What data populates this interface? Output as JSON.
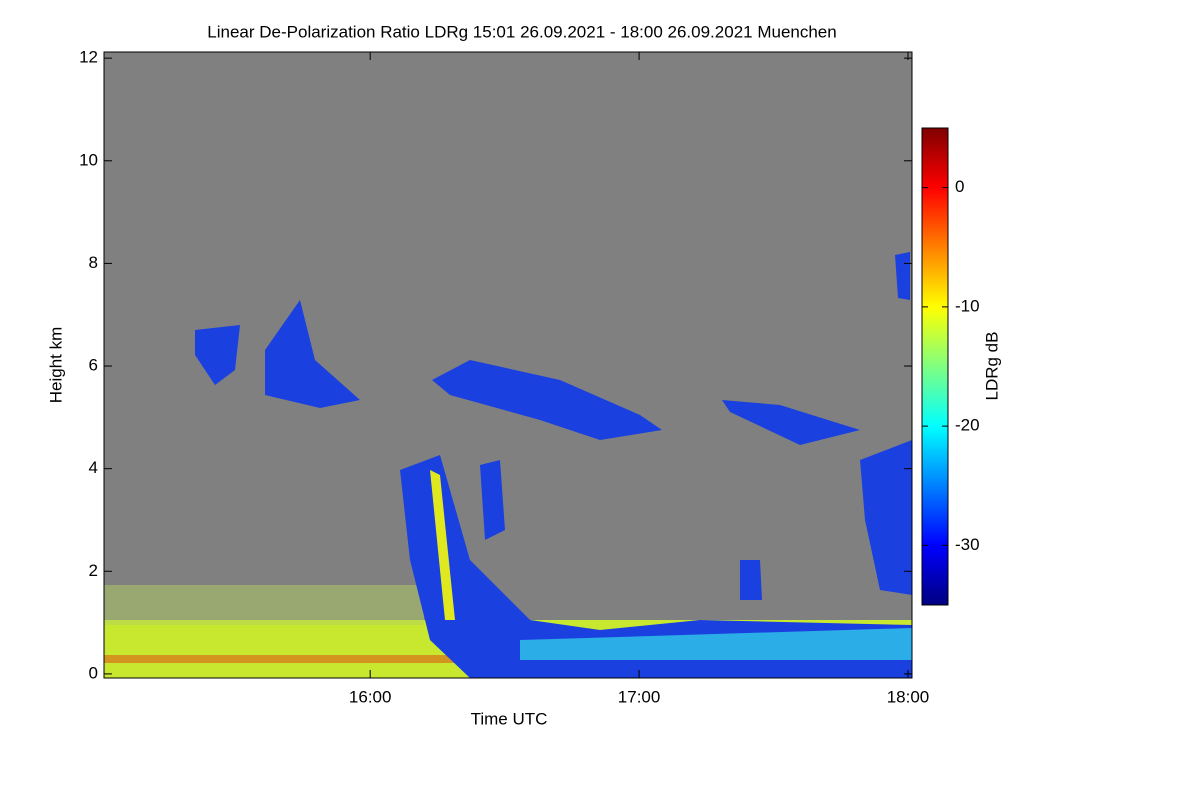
{
  "chart_data": {
    "type": "heatmap",
    "title": "Linear De-Polarization Ratio LDRg   15:01 26.09.2021 - 18:00 26.09.2021 Muenchen",
    "xlabel": "Time UTC",
    "ylabel": "Height km",
    "xlim": [
      15.01,
      18.015
    ],
    "xticks": [
      {
        "value": 16,
        "label": "16:00"
      },
      {
        "value": 17,
        "label": "17:00"
      },
      {
        "value": 18,
        "label": "18:00"
      }
    ],
    "ylim": [
      -0.08,
      12.12
    ],
    "yticks": [
      0,
      2,
      4,
      6,
      8,
      10,
      12
    ],
    "colorbar": {
      "label": "LDRg dB",
      "lim": [
        -35,
        5
      ],
      "ticks": [
        0,
        -10,
        -20,
        -30
      ],
      "colormap": "jet"
    }
  }
}
